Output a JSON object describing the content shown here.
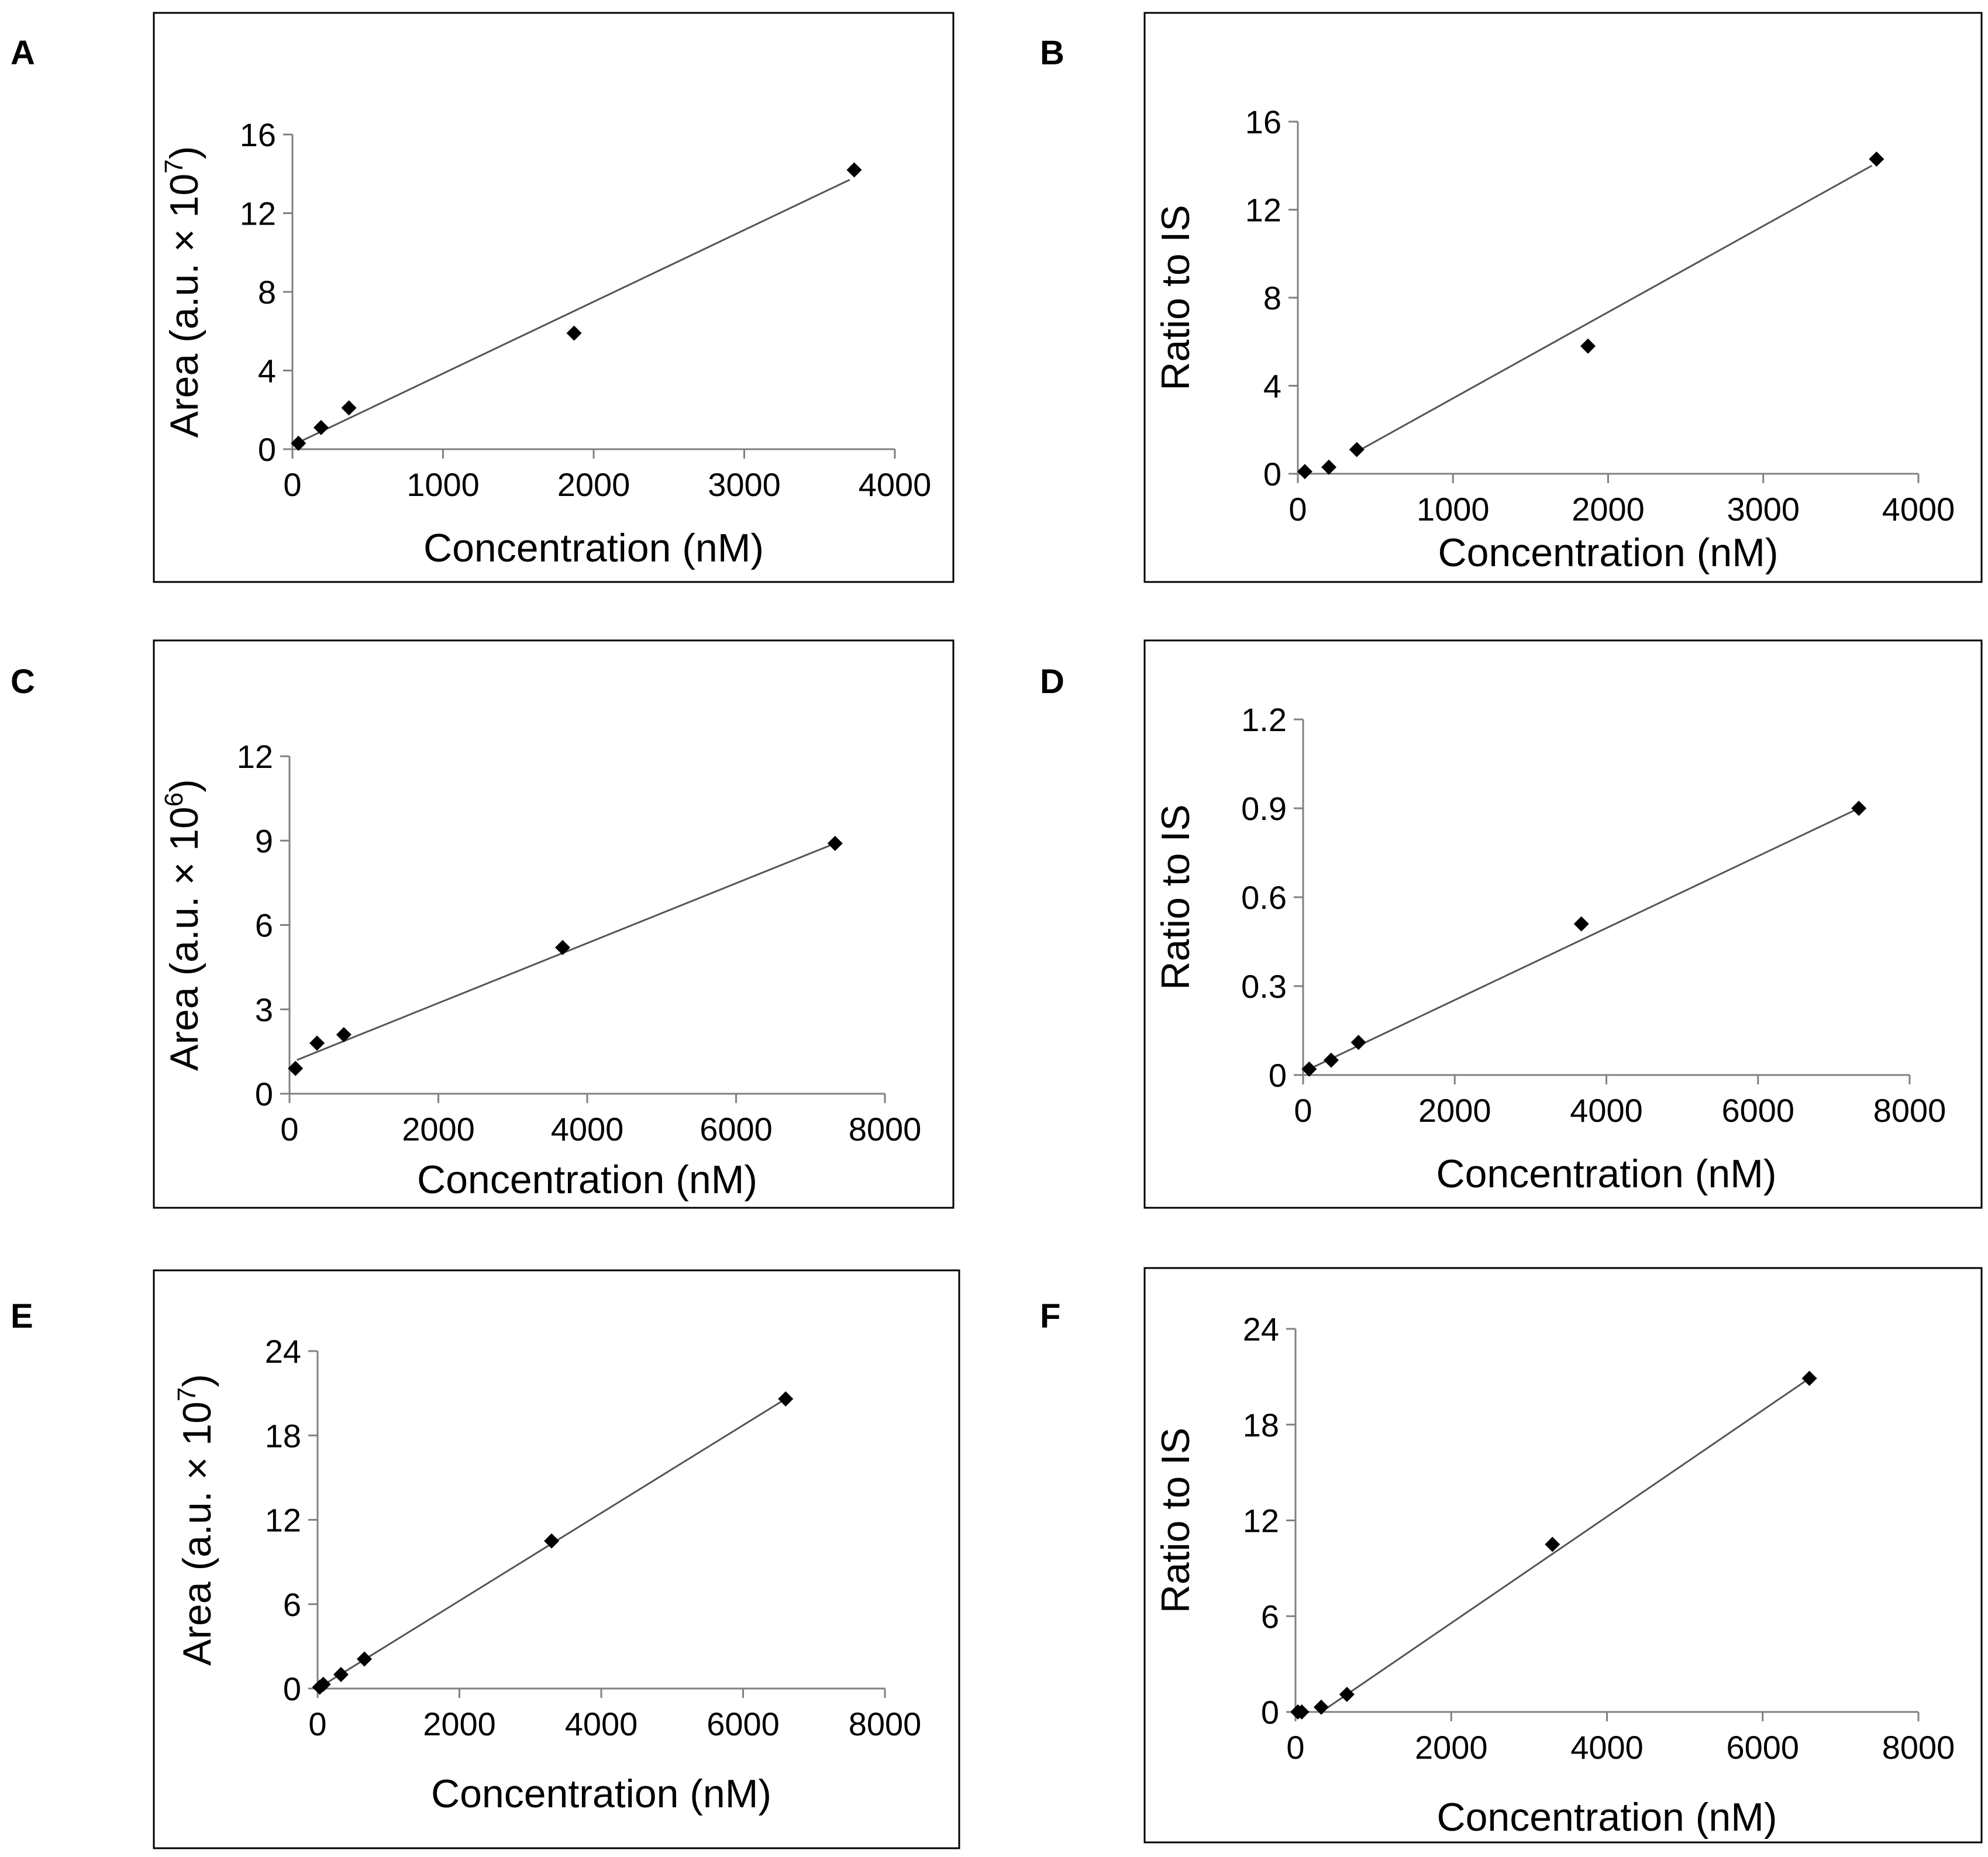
{
  "chart_data": [
    {
      "panel": "A",
      "type": "scatter",
      "xlabel": "Concentration (nM)",
      "ylabel": {
        "base": "Area (a.u. × 10",
        "sup": "7",
        "end": ")"
      },
      "xlim": [
        0,
        4000
      ],
      "ylim": [
        0,
        16
      ],
      "xticks": [
        "0",
        "1000",
        "2000",
        "3000",
        "4000"
      ],
      "yticks": [
        "0",
        "4",
        "8",
        "12",
        "16"
      ],
      "points": [
        {
          "x": 40,
          "y": 0.3
        },
        {
          "x": 190,
          "y": 1.1
        },
        {
          "x": 375,
          "y": 2.1
        },
        {
          "x": 1870,
          "y": 5.9
        },
        {
          "x": 3730,
          "y": 14.2
        }
      ],
      "trendline": {
        "x0": 0,
        "y0": 0.2,
        "x1": 3700,
        "y1": 13.7
      }
    },
    {
      "panel": "B",
      "type": "scatter",
      "xlabel": "Concentration (nM)",
      "ylabel": {
        "base": "Ratio to IS"
      },
      "xlim": [
        0,
        4000
      ],
      "ylim": [
        0,
        16
      ],
      "xticks": [
        "0",
        "1000",
        "2000",
        "3000",
        "4000"
      ],
      "yticks": [
        "0",
        "4",
        "8",
        "12",
        "16"
      ],
      "points": [
        {
          "x": 45,
          "y": 0.1
        },
        {
          "x": 200,
          "y": 0.3
        },
        {
          "x": 380,
          "y": 1.1
        },
        {
          "x": 1870,
          "y": 5.8
        },
        {
          "x": 3730,
          "y": 14.3
        }
      ],
      "trendline": {
        "x0": 380,
        "y0": 1.0,
        "x1": 3700,
        "y1": 14.0
      }
    },
    {
      "panel": "C",
      "type": "scatter",
      "xlabel": "Concentration (nM)",
      "ylabel": {
        "base": "Area (a.u. × 10",
        "sup": "6",
        "end": ")"
      },
      "xlim": [
        0,
        8000
      ],
      "ylim": [
        0,
        12
      ],
      "xticks": [
        "0",
        "2000",
        "4000",
        "6000",
        "8000"
      ],
      "yticks": [
        "0",
        "3",
        "6",
        "9",
        "12"
      ],
      "points": [
        {
          "x": 80,
          "y": 0.9
        },
        {
          "x": 370,
          "y": 1.8
        },
        {
          "x": 730,
          "y": 2.1
        },
        {
          "x": 3670,
          "y": 5.2
        },
        {
          "x": 7330,
          "y": 8.9
        }
      ],
      "trendline": {
        "x0": 100,
        "y0": 1.2,
        "x1": 7330,
        "y1": 8.9
      }
    },
    {
      "panel": "D",
      "type": "scatter",
      "xlabel": "Concentration (nM)",
      "ylabel": {
        "base": "Ratio to IS"
      },
      "xlim": [
        0,
        8000
      ],
      "ylim": [
        0,
        1.2
      ],
      "xticks": [
        "0",
        "2000",
        "4000",
        "6000",
        "8000"
      ],
      "yticks": [
        "0",
        "0.3",
        "0.6",
        "0.9",
        "1.2"
      ],
      "points": [
        {
          "x": 80,
          "y": 0.02
        },
        {
          "x": 370,
          "y": 0.05
        },
        {
          "x": 730,
          "y": 0.11
        },
        {
          "x": 3670,
          "y": 0.51
        },
        {
          "x": 7330,
          "y": 0.9
        }
      ],
      "trendline": {
        "x0": 80,
        "y0": 0.02,
        "x1": 7330,
        "y1": 0.9
      }
    },
    {
      "panel": "E",
      "type": "scatter",
      "xlabel": "Concentration (nM)",
      "ylabel": {
        "base": "Area (a.u. × 10",
        "sup": "7",
        "end": ")"
      },
      "xlim": [
        0,
        8000
      ],
      "ylim": [
        0,
        24
      ],
      "xticks": [
        "0",
        "2000",
        "4000",
        "6000",
        "8000"
      ],
      "yticks": [
        "0",
        "6",
        "12",
        "18",
        "24"
      ],
      "points": [
        {
          "x": 30,
          "y": 0.1
        },
        {
          "x": 80,
          "y": 0.3
        },
        {
          "x": 330,
          "y": 1.0
        },
        {
          "x": 660,
          "y": 2.1
        },
        {
          "x": 3300,
          "y": 10.5
        },
        {
          "x": 6600,
          "y": 20.6
        }
      ],
      "trendline": {
        "x0": 0,
        "y0": 0.0,
        "x1": 6600,
        "y1": 20.6
      }
    },
    {
      "panel": "F",
      "type": "scatter",
      "xlabel": "Concentration (nM)",
      "ylabel": {
        "base": "Ratio to IS"
      },
      "xlim": [
        0,
        8000
      ],
      "ylim": [
        0,
        24
      ],
      "xticks": [
        "0",
        "2000",
        "4000",
        "6000",
        "8000"
      ],
      "yticks": [
        "0",
        "6",
        "12",
        "18",
        "24"
      ],
      "points": [
        {
          "x": 30,
          "y": 0.0
        },
        {
          "x": 80,
          "y": 0.0
        },
        {
          "x": 330,
          "y": 0.3
        },
        {
          "x": 660,
          "y": 1.1
        },
        {
          "x": 3300,
          "y": 10.5
        },
        {
          "x": 6600,
          "y": 20.9
        }
      ],
      "trendline": {
        "x0": 330,
        "y0": 0.0,
        "x1": 6600,
        "y1": 20.9
      }
    }
  ],
  "colors": {
    "marker": "#000000",
    "trendline": "#555555",
    "axis": "#808080",
    "frame": "#000000"
  }
}
